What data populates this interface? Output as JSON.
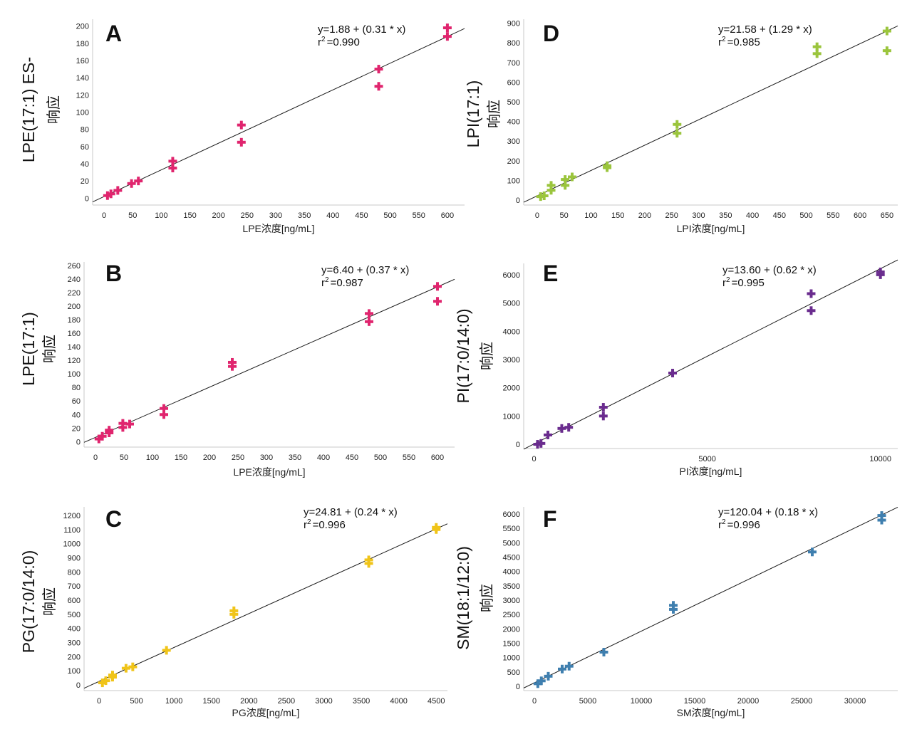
{
  "figure": {
    "response_label": "响应"
  },
  "chart_data": [
    {
      "panel": "A",
      "type": "scatter",
      "title": "A",
      "ylabel": "LPE(17:1) ES-",
      "xlabel": "LPE浓度[ng/mL]",
      "equation": "y=1.88 + (0.31 * x)",
      "r2_value": "=0.990",
      "r2_prefix": "r",
      "r2_sup": "2",
      "intercept": 1.88,
      "slope": 0.31,
      "color": "#E0256E",
      "xlim": [
        -20,
        630
      ],
      "ylim": [
        -8,
        208
      ],
      "xticks": [
        0,
        50,
        100,
        150,
        200,
        250,
        300,
        350,
        400,
        450,
        500,
        550,
        600
      ],
      "yticks": [
        0,
        20,
        40,
        60,
        80,
        100,
        120,
        140,
        160,
        180,
        200
      ],
      "x": [
        6,
        12,
        24,
        48,
        60,
        120,
        120,
        240,
        240,
        480,
        480,
        600,
        600
      ],
      "y": [
        3,
        5,
        9,
        17,
        20,
        35,
        43,
        65,
        85,
        130,
        150,
        188,
        198
      ]
    },
    {
      "panel": "B",
      "type": "scatter",
      "title": "B",
      "ylabel": "LPE(17:1)",
      "xlabel": "LPE浓度[ng/mL]",
      "equation": "y=6.40 + (0.37 * x)",
      "r2_value": "=0.987",
      "r2_prefix": "r",
      "r2_sup": "2",
      "intercept": 6.4,
      "slope": 0.37,
      "color": "#E0256E",
      "xlim": [
        -20,
        630
      ],
      "ylim": [
        -8,
        265
      ],
      "xticks": [
        0,
        50,
        100,
        150,
        200,
        250,
        300,
        350,
        400,
        450,
        500,
        550,
        600
      ],
      "yticks": [
        0,
        20,
        40,
        60,
        80,
        100,
        120,
        140,
        160,
        180,
        200,
        220,
        240,
        260
      ],
      "x": [
        6,
        12,
        24,
        24,
        48,
        48,
        60,
        120,
        120,
        240,
        240,
        480,
        480,
        600,
        600
      ],
      "y": [
        4,
        8,
        13,
        17,
        21,
        27,
        26,
        40,
        49,
        111,
        117,
        177,
        189,
        207,
        229
      ]
    },
    {
      "panel": "C",
      "type": "scatter",
      "title": "C",
      "ylabel": "PG(17:0/14:0)",
      "xlabel": "PG浓度[ng/mL]",
      "equation": "y=24.81 + (0.24 * x)",
      "r2_value": "=0.996",
      "r2_prefix": "r",
      "r2_sup": "2",
      "intercept": 24.81,
      "slope": 0.24,
      "color": "#F0C419",
      "xlim": [
        -200,
        4650
      ],
      "ylim": [
        -40,
        1260
      ],
      "xticks": [
        0,
        500,
        1000,
        1500,
        2000,
        2500,
        3000,
        3500,
        4000,
        4500
      ],
      "yticks": [
        0,
        100,
        200,
        300,
        400,
        500,
        600,
        700,
        800,
        900,
        1000,
        1100,
        1200
      ],
      "x": [
        45,
        90,
        180,
        180,
        360,
        450,
        900,
        1800,
        1800,
        3600,
        3600,
        4500,
        4500
      ],
      "y": [
        15,
        30,
        55,
        70,
        118,
        128,
        245,
        500,
        525,
        860,
        885,
        1100,
        1115
      ]
    },
    {
      "panel": "D",
      "type": "scatter",
      "title": "D",
      "ylabel": "LPI(17:1)",
      "xlabel": "LPI浓度[ng/mL]",
      "equation": "y=21.58 + (1.29 * x)",
      "r2_value": "=0.985",
      "r2_prefix": "r",
      "r2_sup": "2",
      "intercept": 21.58,
      "slope": 1.29,
      "color": "#9BC53D",
      "xlim": [
        -25,
        670
      ],
      "ylim": [
        -25,
        920
      ],
      "xticks": [
        0,
        50,
        100,
        150,
        200,
        250,
        300,
        350,
        400,
        450,
        500,
        550,
        600,
        650
      ],
      "yticks": [
        0,
        100,
        200,
        300,
        400,
        500,
        600,
        700,
        800,
        900
      ],
      "x": [
        6.5,
        13,
        26,
        26,
        52,
        52,
        65,
        130,
        130,
        260,
        260,
        520,
        520,
        650,
        650
      ],
      "y": [
        18,
        22,
        50,
        75,
        75,
        105,
        118,
        165,
        175,
        340,
        385,
        745,
        780,
        760,
        860
      ]
    },
    {
      "panel": "E",
      "type": "scatter",
      "title": "E",
      "ylabel": "PI(17:0/14:0)",
      "xlabel": "PI浓度[ng/mL]",
      "equation": "y=13.60 + (0.62 * x)",
      "r2_value": "=0.995",
      "r2_prefix": "r",
      "r2_sup": "2",
      "intercept": 13.6,
      "slope": 0.62,
      "color": "#6A2C8E",
      "xlim": [
        -300,
        10500
      ],
      "ylim": [
        -150,
        6400
      ],
      "xticks": [
        0,
        5000,
        10000
      ],
      "yticks": [
        0,
        1000,
        2000,
        3000,
        4000,
        5000,
        6000
      ],
      "x": [
        100,
        200,
        400,
        800,
        1000,
        2000,
        2000,
        4000,
        8000,
        8000,
        10000,
        10000
      ],
      "y": [
        0,
        30,
        330,
        560,
        600,
        1000,
        1310,
        2520,
        4730,
        5330,
        6000,
        6100
      ]
    },
    {
      "panel": "F",
      "type": "scatter",
      "title": "F",
      "ylabel": "SM(18:1/12:0)",
      "xlabel": "SM浓度[ng/mL]",
      "equation": "y=120.04 + (0.18 * x)",
      "r2_value": "=0.996",
      "r2_prefix": "r",
      "r2_sup": "2",
      "intercept": 120.04,
      "slope": 0.18,
      "color": "#3F7FAF",
      "xlim": [
        -1000,
        34000
      ],
      "ylim": [
        -150,
        6250
      ],
      "xticks": [
        0,
        5000,
        10000,
        15000,
        20000,
        25000,
        30000
      ],
      "yticks": [
        0,
        500,
        1000,
        1500,
        2000,
        2500,
        3000,
        3500,
        4000,
        4500,
        5000,
        5500,
        6000
      ],
      "x": [
        325,
        650,
        1300,
        2600,
        3250,
        6500,
        13000,
        13000,
        26000,
        32500,
        32500
      ],
      "y": [
        90,
        190,
        350,
        600,
        700,
        1190,
        2680,
        2820,
        4680,
        5790,
        5950
      ]
    }
  ]
}
